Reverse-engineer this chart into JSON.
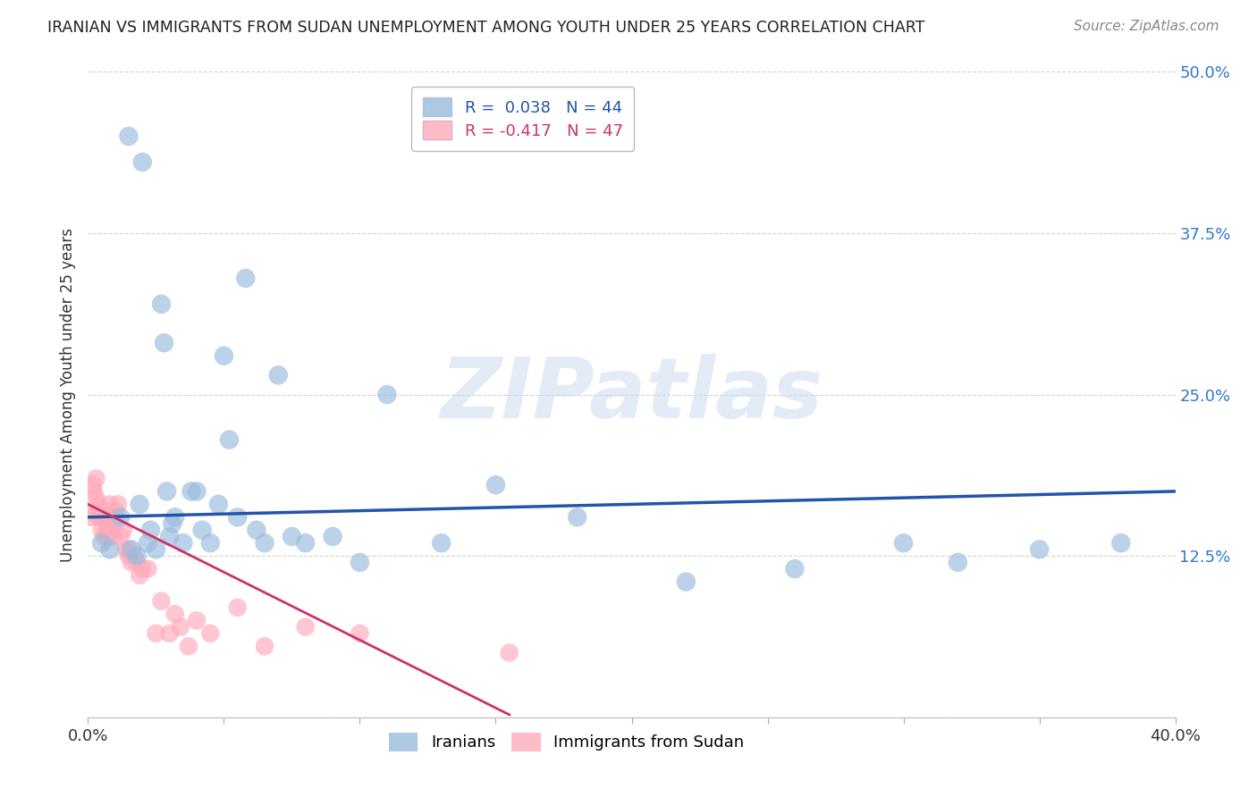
{
  "title": "IRANIAN VS IMMIGRANTS FROM SUDAN UNEMPLOYMENT AMONG YOUTH UNDER 25 YEARS CORRELATION CHART",
  "source": "Source: ZipAtlas.com",
  "ylabel": "Unemployment Among Youth under 25 years",
  "ytick_labels": [
    "",
    "12.5%",
    "25.0%",
    "37.5%",
    "50.0%"
  ],
  "ytick_values": [
    0.0,
    0.125,
    0.25,
    0.375,
    0.5
  ],
  "xlim": [
    0.0,
    0.4
  ],
  "ylim": [
    0.0,
    0.5
  ],
  "iranians_color": "#99bbdd",
  "sudan_color": "#ffaabb",
  "trendline_iranians_color": "#2255aa",
  "trendline_sudan_color": "#cc3366",
  "iranians_x": [
    0.005,
    0.008,
    0.012,
    0.015,
    0.016,
    0.018,
    0.02,
    0.022,
    0.023,
    0.025,
    0.027,
    0.028,
    0.03,
    0.031,
    0.032,
    0.035,
    0.038,
    0.04,
    0.042,
    0.045,
    0.048,
    0.05,
    0.052,
    0.055,
    0.058,
    0.062,
    0.065,
    0.07,
    0.075,
    0.08,
    0.09,
    0.1,
    0.11,
    0.13,
    0.15,
    0.18,
    0.22,
    0.26,
    0.3,
    0.32,
    0.35,
    0.38,
    0.019,
    0.029
  ],
  "iranians_y": [
    0.135,
    0.13,
    0.155,
    0.45,
    0.13,
    0.125,
    0.43,
    0.135,
    0.145,
    0.13,
    0.32,
    0.29,
    0.14,
    0.15,
    0.155,
    0.135,
    0.175,
    0.175,
    0.145,
    0.135,
    0.165,
    0.28,
    0.215,
    0.155,
    0.34,
    0.145,
    0.135,
    0.265,
    0.14,
    0.135,
    0.14,
    0.12,
    0.25,
    0.135,
    0.18,
    0.155,
    0.105,
    0.115,
    0.135,
    0.12,
    0.13,
    0.135,
    0.165,
    0.175
  ],
  "sudan_x": [
    0.001,
    0.002,
    0.002,
    0.003,
    0.003,
    0.003,
    0.004,
    0.004,
    0.005,
    0.005,
    0.006,
    0.006,
    0.006,
    0.007,
    0.007,
    0.007,
    0.008,
    0.008,
    0.009,
    0.009,
    0.01,
    0.01,
    0.011,
    0.012,
    0.013,
    0.014,
    0.015,
    0.015,
    0.016,
    0.017,
    0.018,
    0.019,
    0.02,
    0.022,
    0.025,
    0.027,
    0.03,
    0.032,
    0.034,
    0.037,
    0.04,
    0.045,
    0.055,
    0.065,
    0.08,
    0.1,
    0.155
  ],
  "sudan_y": [
    0.155,
    0.175,
    0.18,
    0.16,
    0.17,
    0.185,
    0.155,
    0.165,
    0.145,
    0.155,
    0.14,
    0.155,
    0.16,
    0.14,
    0.145,
    0.15,
    0.145,
    0.165,
    0.14,
    0.145,
    0.155,
    0.16,
    0.165,
    0.14,
    0.145,
    0.13,
    0.125,
    0.13,
    0.12,
    0.125,
    0.12,
    0.11,
    0.115,
    0.115,
    0.065,
    0.09,
    0.065,
    0.08,
    0.07,
    0.055,
    0.075,
    0.065,
    0.085,
    0.055,
    0.07,
    0.065,
    0.05
  ],
  "watermark": "ZIPatlas",
  "background_color": "#ffffff",
  "iran_trendline_x": [
    0.0,
    0.4
  ],
  "iran_trendline_y": [
    0.155,
    0.175
  ],
  "sudan_trendline_x": [
    0.0,
    0.155
  ],
  "sudan_trendline_y": [
    0.165,
    0.002
  ]
}
